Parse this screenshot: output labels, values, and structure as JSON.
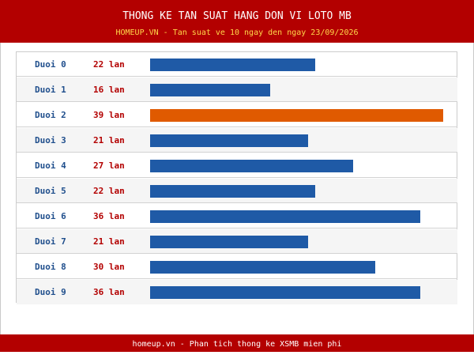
{
  "header": {
    "title": "THONG KE TAN SUAT HANG DON VI LOTO MB",
    "subtitle": "HOMEUP.VN - Tan suat ve 10 ngay den ngay 23/09/2026"
  },
  "footer": {
    "text": "homeup.vn - Phan tich thong ke XSMB mien phi"
  },
  "colors": {
    "header": "#b30000",
    "bar": "#1f5aa6",
    "highlight": "#e05a00",
    "subtitle": "#ffd84a"
  },
  "chart_data": {
    "type": "bar",
    "orientation": "horizontal",
    "title": "THONG KE TAN SUAT HANG DON VI LOTO MB",
    "subtitle": "HOMEUP.VN - Tan suat ve 10 ngay den ngay 23/09/2026",
    "categories": [
      "Duoi 0",
      "Duoi 1",
      "Duoi 2",
      "Duoi 3",
      "Duoi 4",
      "Duoi 5",
      "Duoi 6",
      "Duoi 7",
      "Duoi 8",
      "Duoi 9"
    ],
    "values": [
      22,
      16,
      39,
      21,
      27,
      22,
      36,
      21,
      30,
      36
    ],
    "value_labels": [
      "22 lan",
      "16 lan",
      "39 lan",
      "21 lan",
      "27 lan",
      "22 lan",
      "36 lan",
      "21 lan",
      "30 lan",
      "36 lan"
    ],
    "xlim": [
      0,
      39
    ],
    "highlight_index": 2,
    "grid": false,
    "legend": "none"
  }
}
